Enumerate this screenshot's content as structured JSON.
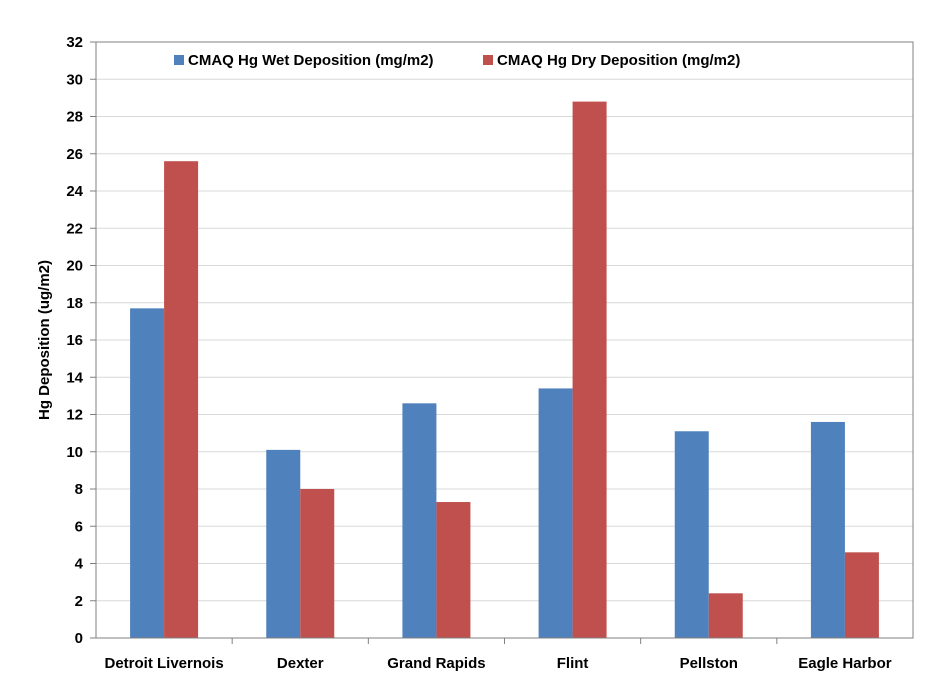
{
  "chart_data": {
    "type": "bar",
    "title": "",
    "xlabel": "",
    "ylabel": "Hg Deposition (ug/m2)",
    "ylim": [
      0,
      32
    ],
    "ytick_step": 2,
    "grid": true,
    "legend_position": "top",
    "categories": [
      "Detroit Livernois",
      "Dexter",
      "Grand Rapids",
      "Flint",
      "Pellston",
      "Eagle Harbor"
    ],
    "series": [
      {
        "name": "CMAQ Hg Wet Deposition (mg/m2)",
        "color": "#4F81BD",
        "values": [
          17.7,
          10.1,
          12.6,
          13.4,
          11.1,
          11.6
        ]
      },
      {
        "name": "CMAQ Hg Dry Deposition (mg/m2)",
        "color": "#C0504D",
        "values": [
          25.6,
          8.0,
          7.3,
          28.8,
          2.4,
          4.6
        ]
      }
    ]
  }
}
